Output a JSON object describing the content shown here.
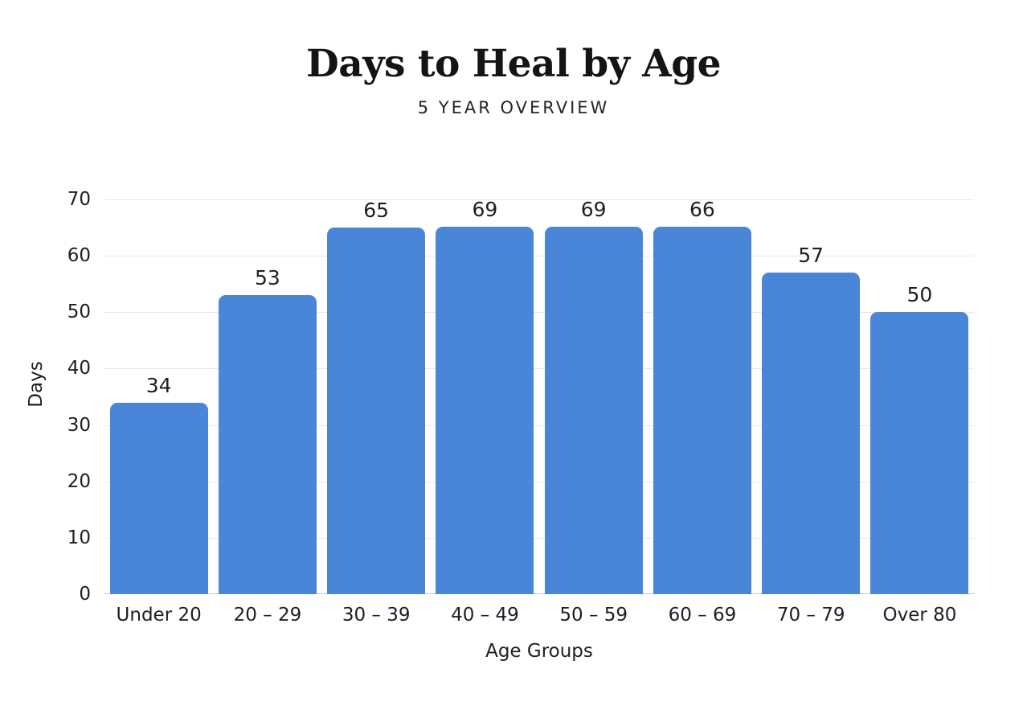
{
  "chart_data": {
    "type": "bar",
    "title": "Days to Heal by Age",
    "subtitle": "5 YEAR OVERVIEW",
    "xlabel": "Age Groups",
    "ylabel": "Days",
    "categories": [
      "Under 20",
      "20 – 29",
      "30 – 39",
      "40 – 49",
      "50 – 59",
      "60 – 69",
      "70 – 79",
      "Over 80"
    ],
    "values": [
      34,
      53,
      65,
      69,
      69,
      66,
      57,
      50
    ],
    "ylim": [
      0,
      70
    ],
    "yticks": [
      0,
      10,
      20,
      30,
      40,
      50,
      60,
      70
    ],
    "grid": true,
    "legend_position": "none",
    "data_labels": true,
    "bar_color": "#4a86d8",
    "gridline_color": "#e7e7e7",
    "axis_line_color": "#c9c9c9",
    "text_color": "#1f1f1f",
    "background_color": "#ffffff"
  }
}
